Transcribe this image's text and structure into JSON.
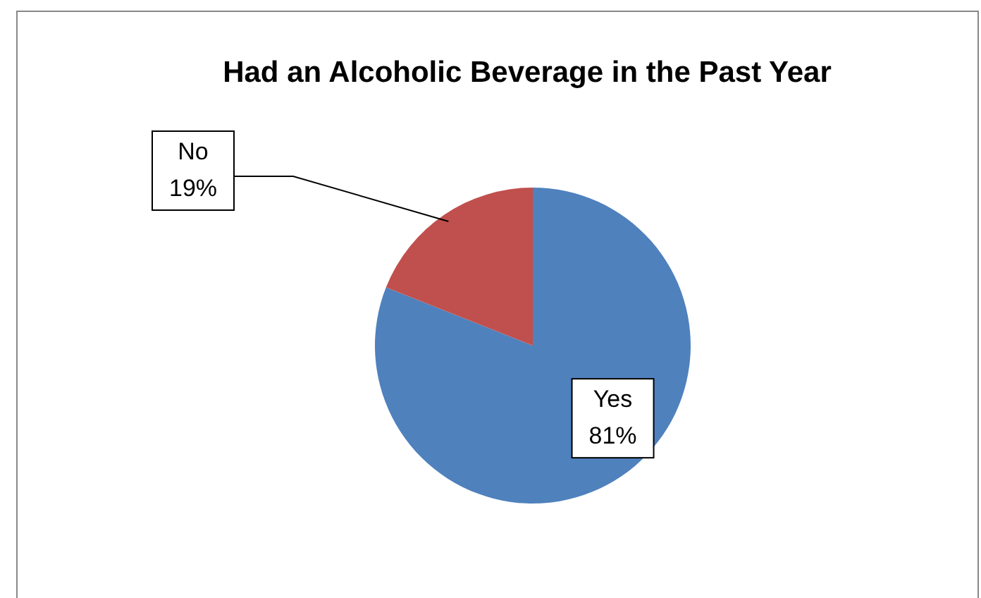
{
  "chart_data": {
    "type": "pie",
    "title": "Had an Alcoholic Beverage in the Past Year",
    "categories": [
      "Yes",
      "No"
    ],
    "values": [
      81,
      19
    ],
    "colors": [
      "#4f81bd",
      "#c0504d"
    ],
    "value_labels": [
      "81%",
      "19%"
    ]
  }
}
